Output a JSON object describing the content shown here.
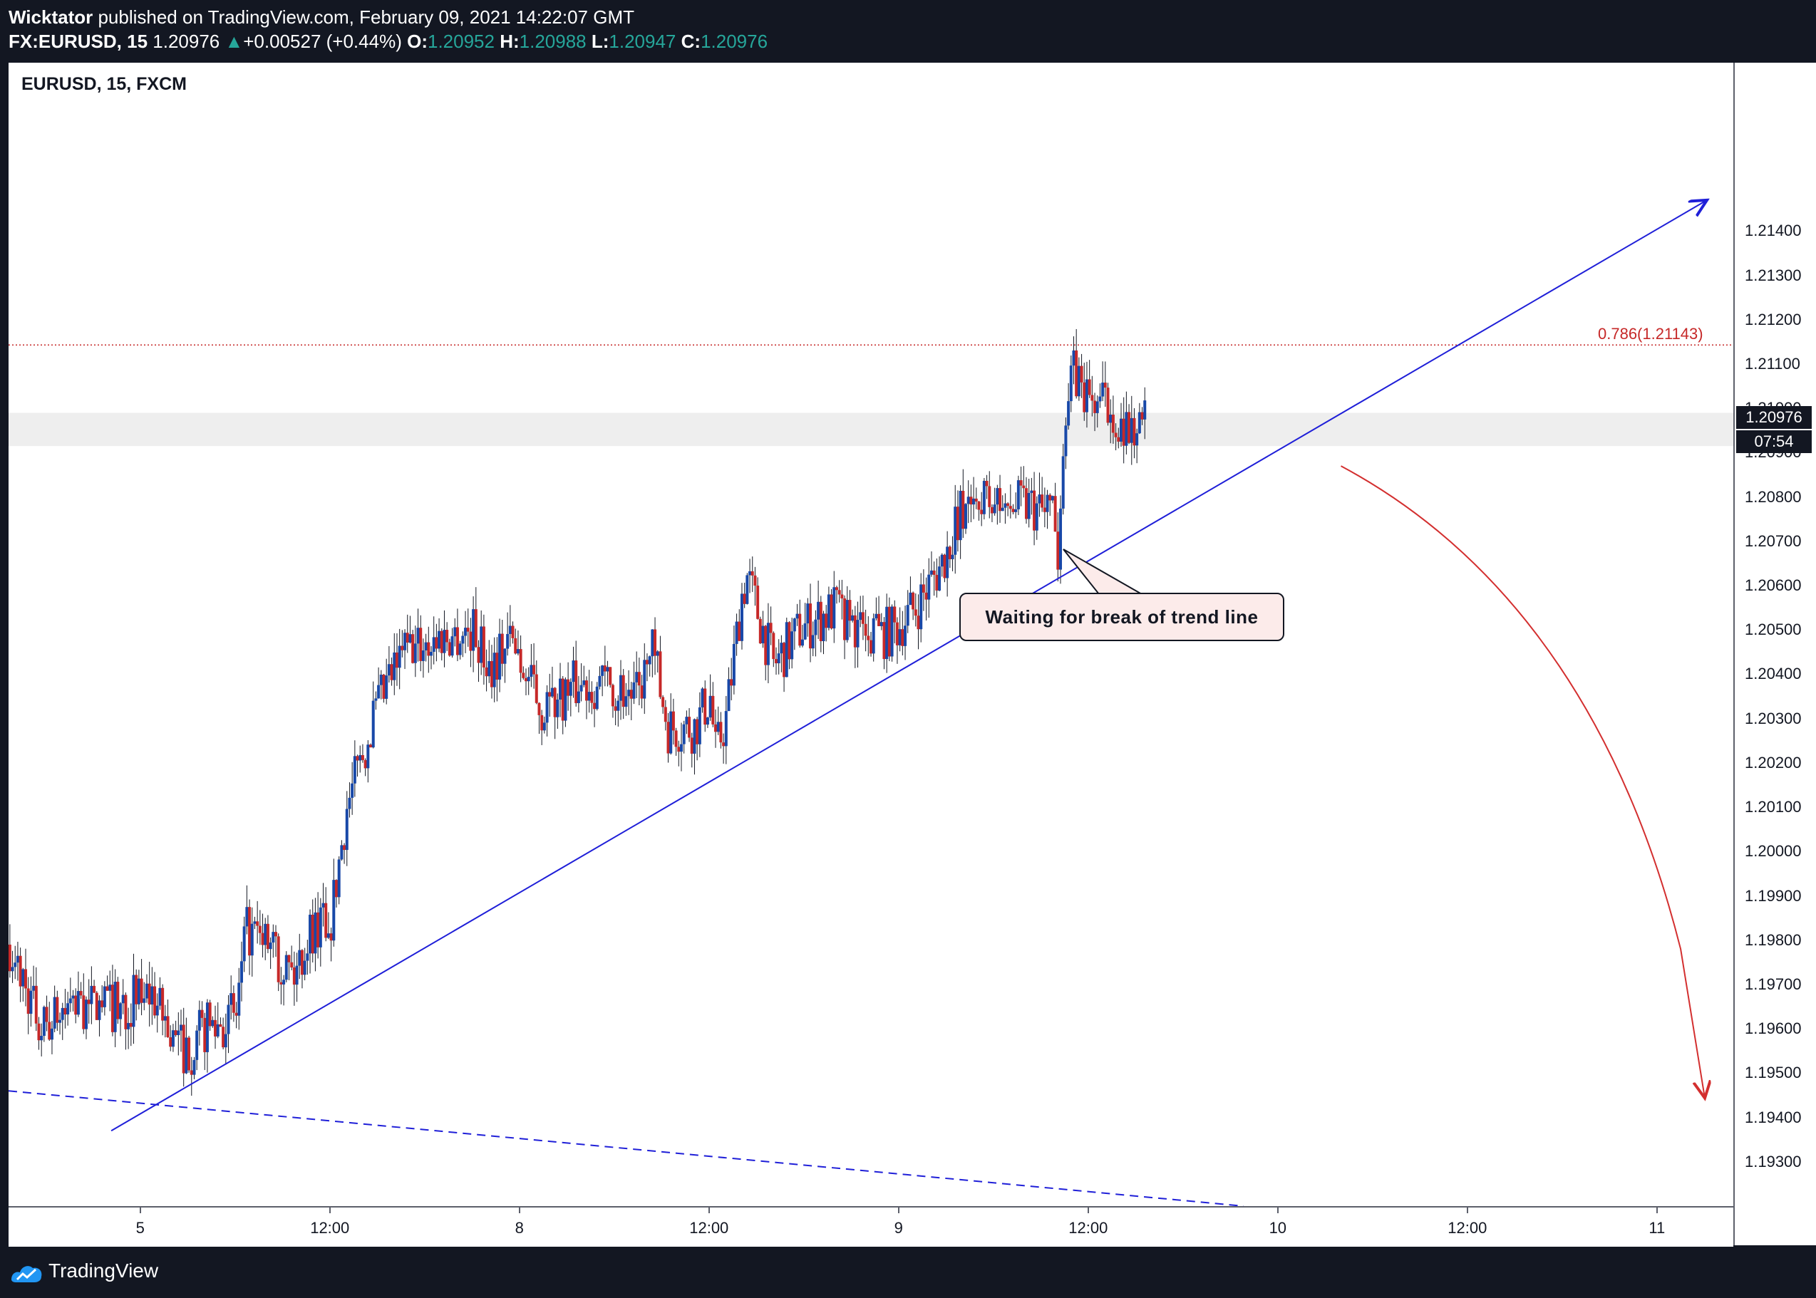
{
  "header": {
    "author": "Wicktator",
    "published": " published on TradingView.com, February 09, 2021 14:22:07 GMT",
    "symbol": "FX:EURUSD, 15",
    "last": "1.20976",
    "arrow": "▲",
    "change": "+0.00527 (+0.44%)",
    "o_label": "O:",
    "o_value": "1.20952",
    "h_label": "H:",
    "h_value": "1.20988",
    "l_label": "L:",
    "l_value": "1.20947",
    "c_label": "C:",
    "c_value": "1.20976"
  },
  "chart": {
    "symbol_label": "EURUSD, 15, FXCM",
    "price_badge": "1.20976",
    "countdown": "07:54",
    "fib_label": "0.786(1.21143)",
    "callout": "Waiting for break of trend line",
    "colors": {
      "up": "#1848a8",
      "down": "#c62828",
      "trend": "#1f1fd8",
      "arrow": "#d32f2f"
    }
  },
  "footer": {
    "brand": "TradingView",
    "logo_icon": "tradingview-logo-icon"
  },
  "chart_data": {
    "type": "candlestick",
    "title": "EURUSD, 15, FXCM",
    "ylim": [
      1.192,
      1.2178
    ],
    "y_ticks": [
      "1.21400",
      "1.21300",
      "1.21200",
      "1.21100",
      "1.21000",
      "1.20900",
      "1.20800",
      "1.20700",
      "1.20600",
      "1.20500",
      "1.20400",
      "1.20300",
      "1.20200",
      "1.20100",
      "1.20000",
      "1.19900",
      "1.19800",
      "1.19700",
      "1.19600",
      "1.19500",
      "1.19400",
      "1.19300"
    ],
    "x_ticks": [
      "5",
      "12:00",
      "8",
      "12:00",
      "9",
      "12:00",
      "10",
      "12:00",
      "11"
    ],
    "x_tick_index": [
      71,
      143,
      215,
      287,
      359,
      431,
      503,
      575,
      647
    ],
    "x_index_range": [
      21,
      676
    ],
    "waypoints": [
      [
        21,
        1.1979
      ],
      [
        33,
        1.196
      ],
      [
        45,
        1.1965
      ],
      [
        63,
        1.1965
      ],
      [
        75,
        1.1968
      ],
      [
        83,
        1.1957
      ],
      [
        89,
        1.1955
      ],
      [
        95,
        1.196
      ],
      [
        107,
        1.1963
      ],
      [
        111,
        1.1982
      ],
      [
        121,
        1.1978
      ],
      [
        129,
        1.1972
      ],
      [
        135,
        1.1982
      ],
      [
        143,
        1.1985
      ],
      [
        149,
        1.201
      ],
      [
        159,
        1.203
      ],
      [
        165,
        1.2038
      ],
      [
        171,
        1.2045
      ],
      [
        183,
        1.2048
      ],
      [
        197,
        1.205
      ],
      [
        203,
        1.2042
      ],
      [
        211,
        1.2048
      ],
      [
        223,
        1.2032
      ],
      [
        237,
        1.2038
      ],
      [
        249,
        1.2038
      ],
      [
        259,
        1.2035
      ],
      [
        265,
        1.2045
      ],
      [
        271,
        1.2028
      ],
      [
        281,
        1.2028
      ],
      [
        287,
        1.2035
      ],
      [
        289,
        1.2022
      ],
      [
        293,
        1.203
      ],
      [
        299,
        1.2058
      ],
      [
        301,
        1.2062
      ],
      [
        311,
        1.2042
      ],
      [
        321,
        1.205
      ],
      [
        335,
        1.2055
      ],
      [
        347,
        1.2048
      ],
      [
        357,
        1.205
      ],
      [
        365,
        1.2055
      ],
      [
        375,
        1.2065
      ],
      [
        385,
        1.208
      ],
      [
        397,
        1.2078
      ],
      [
        409,
        1.2078
      ],
      [
        417,
        1.2075
      ],
      [
        419,
        1.2068
      ],
      [
        421,
        1.2095
      ],
      [
        425,
        1.2108
      ],
      [
        431,
        1.2102
      ],
      [
        441,
        1.21
      ],
      [
        447,
        1.2095
      ],
      [
        453,
        1.2097
      ]
    ],
    "trendline": [
      [
        60,
        1.1937
      ],
      [
        526,
        1.2088
      ]
    ],
    "trendline_extension": [
      [
        526,
        1.2088
      ],
      [
        666,
        1.2147
      ]
    ],
    "dashed_line": [
      [
        21,
        1.1946
      ],
      [
        490,
        1.192
      ]
    ],
    "fib_level": 1.21143,
    "support_zone": [
      1.20915,
      1.2099
    ],
    "projection_arrow": [
      [
        527,
        1.2087
      ],
      [
        596,
        1.2065
      ],
      [
        636,
        1.2025
      ],
      [
        656,
        1.1978
      ],
      [
        665,
        1.1945
      ]
    ]
  }
}
